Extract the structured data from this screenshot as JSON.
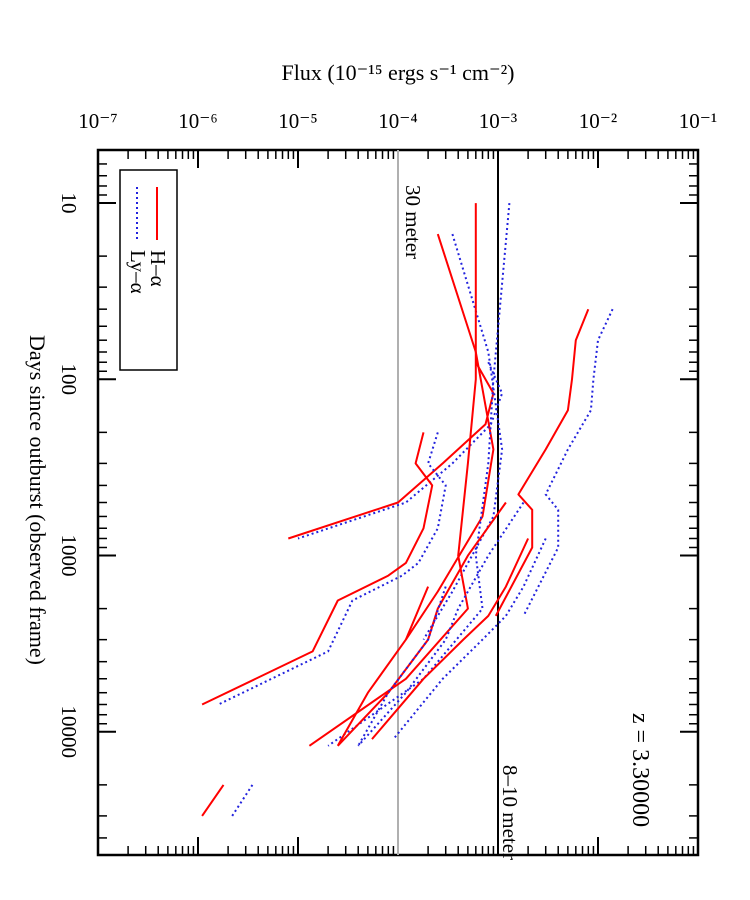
{
  "chart_data": {
    "type": "line",
    "title": "",
    "xlabel": "Days since outburst (observed frame)",
    "ylabel": "Flux (10⁻¹⁵ ergs s⁻¹ cm⁻²)",
    "x_scale": "log",
    "y_scale": "log",
    "xlim": [
      5,
      50000
    ],
    "ylim": [
      1e-07,
      0.1
    ],
    "x_ticks": [
      {
        "value": 10,
        "label": "10"
      },
      {
        "value": 100,
        "label": "100"
      },
      {
        "value": 1000,
        "label": "1000"
      },
      {
        "value": 10000,
        "label": "10000"
      }
    ],
    "y_ticks": [
      {
        "value": 1e-07,
        "label": "10⁻⁷"
      },
      {
        "value": 1e-06,
        "label": "10⁻⁶"
      },
      {
        "value": 1e-05,
        "label": "10⁻⁵"
      },
      {
        "value": 0.0001,
        "label": "10⁻⁴"
      },
      {
        "value": 0.001,
        "label": "10⁻³"
      },
      {
        "value": 0.01,
        "label": "10⁻²"
      },
      {
        "value": 0.1,
        "label": "10⁻¹"
      }
    ],
    "redshift_label": "z = 3.30000",
    "reference_lines": [
      {
        "name": "30 meter",
        "value": 0.0001,
        "color": "#b0b0b0"
      },
      {
        "name": "8–10 meter",
        "value": 0.001,
        "color": "#000000"
      }
    ],
    "legend": {
      "placement": "top-left",
      "entries": [
        {
          "name": "H–α",
          "color": "#ff0000",
          "style": "solid"
        },
        {
          "name": "Ly–α",
          "color": "#2222dd",
          "style": "dotted"
        }
      ]
    },
    "series": [
      {
        "name": "H–α",
        "color": "#ff0000",
        "style": "solid",
        "x": [
          40,
          60,
          100,
          150,
          250,
          450,
          550,
          900,
          2200
        ],
        "y": [
          0.008,
          0.006,
          0.0055,
          0.005,
          0.003,
          0.0016,
          0.0022,
          0.0022,
          0.00095
        ]
      },
      {
        "name": "Ly–α",
        "color": "#2222dd",
        "style": "dotted",
        "x": [
          40,
          60,
          100,
          150,
          250,
          450,
          550,
          900,
          2200
        ],
        "y": [
          0.014,
          0.01,
          0.009,
          0.0085,
          0.005,
          0.003,
          0.004,
          0.004,
          0.0018
        ]
      },
      {
        "name": "H–α",
        "color": "#ff0000",
        "style": "solid",
        "x": [
          80,
          120,
          180,
          300,
          500,
          800
        ],
        "y": [
          0.0006,
          0.0009,
          0.00075,
          0.00028,
          0.0001,
          8e-06
        ]
      },
      {
        "name": "Ly–α",
        "color": "#2222dd",
        "style": "dotted",
        "x": [
          80,
          120,
          180,
          300,
          500,
          800
        ],
        "y": [
          0.0008,
          0.0011,
          0.00085,
          0.00035,
          0.00012,
          1e-05
        ]
      },
      {
        "name": "H–α",
        "color": "#ff0000",
        "style": "solid",
        "x": [
          15,
          70,
          250,
          600,
          1600,
          3000
        ],
        "y": [
          0.00025,
          0.0006,
          0.0009,
          0.0007,
          0.00025,
          0.00012
        ]
      },
      {
        "name": "Ly–α",
        "color": "#2222dd",
        "style": "dotted",
        "x": [
          15,
          70,
          250,
          600,
          1600,
          3000
        ],
        "y": [
          0.00035,
          0.0008,
          0.0011,
          0.0009,
          0.00035,
          0.00018
        ]
      },
      {
        "name": "H–α",
        "color": "#ff0000",
        "style": "solid",
        "x": [
          10,
          100,
          300,
          1000,
          2000,
          5000,
          12000
        ],
        "y": [
          0.0006,
          0.0006,
          0.0005,
          0.0004,
          0.0005,
          0.00012,
          1.3e-05
        ]
      },
      {
        "name": "Ly–α",
        "color": "#2222dd",
        "style": "dotted",
        "x": [
          10,
          100,
          300,
          1000,
          2000,
          5000,
          12000
        ],
        "y": [
          0.0013,
          0.0009,
          0.0008,
          0.0006,
          0.0007,
          0.00018,
          2e-05
        ]
      },
      {
        "name": "H–α",
        "color": "#ff0000",
        "style": "solid",
        "x": [
          200,
          300,
          400,
          700,
          1100,
          1300,
          1800,
          3500,
          7000
        ],
        "y": [
          0.00018,
          0.00015,
          0.00022,
          0.00018,
          0.00012,
          8e-05,
          2.5e-05,
          1.4e-05,
          1.1e-06
        ]
      },
      {
        "name": "Ly–α",
        "color": "#2222dd",
        "style": "dotted",
        "x": [
          200,
          300,
          400,
          700,
          1100,
          1300,
          1800,
          3500,
          7000
        ],
        "y": [
          0.00025,
          0.0002,
          0.0003,
          0.00025,
          0.00016,
          0.00011,
          3.5e-05,
          2e-05,
          1.6e-06
        ]
      },
      {
        "name": "H–α",
        "color": "#ff0000",
        "style": "solid",
        "x": [
          500,
          1000,
          2000,
          3000,
          6000,
          12000
        ],
        "y": [
          0.0012,
          0.0005,
          0.00025,
          0.0002,
          8e-05,
          2.5e-05
        ]
      },
      {
        "name": "Ly–α",
        "color": "#2222dd",
        "style": "dotted",
        "x": [
          500,
          1000,
          2000,
          3000,
          6000,
          12000
        ],
        "y": [
          0.0018,
          0.0008,
          0.0004,
          0.0003,
          0.00012,
          4e-05
        ]
      },
      {
        "name": "H–α",
        "color": "#ff0000",
        "style": "solid",
        "x": [
          800,
          1500,
          2200,
          3000,
          5000,
          11000
        ],
        "y": [
          0.002,
          0.0012,
          0.0008,
          0.00045,
          0.00018,
          5.5e-05
        ]
      },
      {
        "name": "Ly–α",
        "color": "#2222dd",
        "style": "dotted",
        "x": [
          800,
          1500,
          2200,
          3000,
          5000,
          11000
        ],
        "y": [
          0.003,
          0.0018,
          0.0012,
          0.0007,
          0.00028,
          9e-05
        ]
      },
      {
        "name": "H–α",
        "color": "#ff0000",
        "style": "solid",
        "x": [
          1500,
          3000,
          6000,
          12000
        ],
        "y": [
          0.0002,
          0.00012,
          5e-05,
          2.5e-05
        ]
      },
      {
        "name": "Ly–α",
        "color": "#2222dd",
        "style": "dotted",
        "x": [
          1500,
          3000,
          6000,
          12000
        ],
        "y": [
          0.0003,
          0.0002,
          8e-05,
          4e-05
        ]
      },
      {
        "name": "H–α",
        "color": "#ff0000",
        "style": "solid",
        "x": [
          20000,
          30000
        ],
        "y": [
          1.8e-06,
          1.1e-06
        ]
      },
      {
        "name": "Ly–α",
        "color": "#2222dd",
        "style": "dotted",
        "x": [
          20000,
          30000
        ],
        "y": [
          3.5e-06,
          2.2e-06
        ]
      }
    ]
  }
}
